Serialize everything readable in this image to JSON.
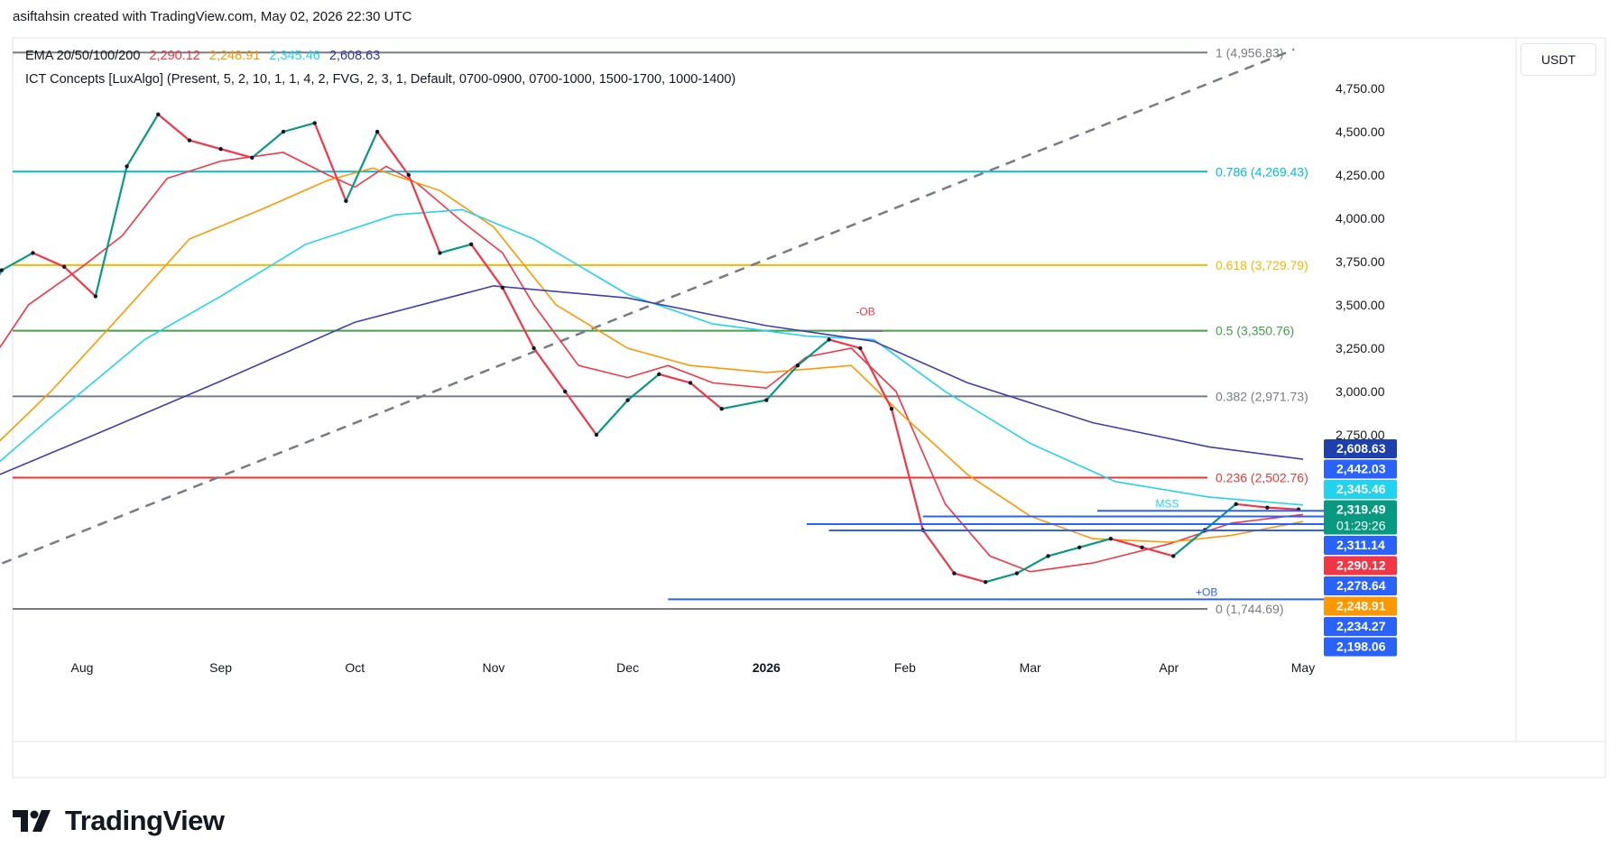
{
  "header": {
    "text": "asiftahsin created with TradingView.com, May 02, 2026 22:30 UTC"
  },
  "legend": {
    "ema_label": "EMA 20/50/100/200",
    "ema_values": [
      {
        "value": "2,290.12",
        "color": "#f23645"
      },
      {
        "value": "2,248.91",
        "color": "#ff9800"
      },
      {
        "value": "2,345.46",
        "color": "#22d3ee"
      },
      {
        "value": "2,608.63",
        "color": "#2e3a9e"
      }
    ],
    "ict": "ICT Concepts [LuxAlgo] (Present, 5, 2, 10, 1, 1, 4, 2, FVG, 2, 3, 1, Default, 0700-0900, 0700-1000, 1500-1700, 1000-1400)"
  },
  "currency": "USDT",
  "brand": "TradingView",
  "chart_data": {
    "type": "candlestick",
    "symbol_quote": "USDT",
    "y_axis_ticks": [
      4750,
      4500,
      4250,
      4000,
      3750,
      3500,
      3250,
      3000,
      2750
    ],
    "y_axis_tick_labels": [
      "4,750.00",
      "4,500.00",
      "4,250.00",
      "4,000.00",
      "3,750.00",
      "3,500.00",
      "3,250.00",
      "3,000.00",
      "2,750.00"
    ],
    "ylim": [
      1600,
      5050
    ],
    "x_axis_labels": [
      "Aug",
      "Sep",
      "Oct",
      "Nov",
      "Dec",
      "2026",
      "Feb",
      "Mar",
      "Apr",
      "May"
    ],
    "x_axis_dates": [
      "2025-08-01",
      "2025-09-01",
      "2025-10-01",
      "2025-11-01",
      "2025-12-01",
      "2026-01-01",
      "2026-02-01",
      "2026-03-01",
      "2026-04-01",
      "2026-05-01"
    ],
    "fib_levels": [
      {
        "ratio": "1",
        "value": 4956.83,
        "label": "1 (4,956.83)",
        "color": "#787b86"
      },
      {
        "ratio": "0.786",
        "value": 4269.43,
        "label": "0.786 (4,269.43)",
        "color": "#00bcd4"
      },
      {
        "ratio": "0.618",
        "value": 3729.79,
        "label": "0.618 (3,729.79)",
        "color": "#f5b700"
      },
      {
        "ratio": "0.5",
        "value": 3350.76,
        "label": "0.5 (3,350.76)",
        "color": "#43a047"
      },
      {
        "ratio": "0.382",
        "value": 2971.73,
        "label": "0.382 (2,971.73)",
        "color": "#787b86"
      },
      {
        "ratio": "0.236",
        "value": 2502.76,
        "label": "0.236 (2,502.76)",
        "color": "#e53935"
      },
      {
        "ratio": "0",
        "value": 1744.69,
        "label": "0 (1,744.69)",
        "color": "#787b86"
      }
    ],
    "trend_line": {
      "from": [
        "2025-07-07",
        1935
      ],
      "to": [
        "2026-04-29",
        4975
      ],
      "style": "dashed",
      "color": "#787b86"
    },
    "price_tags": [
      {
        "value": 2608.63,
        "label": "2,608.63",
        "bg": "#1e40af"
      },
      {
        "value": 2442.03,
        "label": "2,442.03",
        "bg": "#2962ff"
      },
      {
        "value": 2345.46,
        "label": "2,345.46",
        "bg": "#22d3ee"
      },
      {
        "value": 2319.49,
        "label": "2,319.49",
        "bg": "#089981",
        "sub": "01:29:26"
      },
      {
        "value": 2311.14,
        "label": "2,311.14",
        "bg": "#2962ff"
      },
      {
        "value": 2290.12,
        "label": "2,290.12",
        "bg": "#f23645"
      },
      {
        "value": 2278.64,
        "label": "2,278.64",
        "bg": "#2962ff"
      },
      {
        "value": 2248.91,
        "label": "2,248.91",
        "bg": "#ff9800"
      },
      {
        "value": 2234.27,
        "label": "2,234.27",
        "bg": "#2962ff"
      },
      {
        "value": 2198.06,
        "label": "2,198.06",
        "bg": "#2962ff"
      }
    ],
    "annotations": [
      {
        "text": "-OB",
        "date": "2026-01-21",
        "value": 3440,
        "color": "#f23645"
      },
      {
        "text": "+OB",
        "date": "2026-04-07",
        "value": 1820,
        "color": "#2962ff"
      },
      {
        "text": "MSS",
        "date": "2026-03-29",
        "value": 2330,
        "color": "#22d3ee"
      }
    ],
    "ob_lines": [
      {
        "value": 2311.14,
        "from": "2026-03-16"
      },
      {
        "value": 2278.64,
        "from": "2026-02-05"
      },
      {
        "value": 2234.27,
        "from": "2026-01-10"
      },
      {
        "value": 2198.06,
        "from": "2026-01-15"
      },
      {
        "value": 1800,
        "from": "2025-12-10"
      }
    ],
    "ob_red_segment": {
      "value": 3350,
      "from": "2026-01-18",
      "to": "2026-01-27"
    },
    "ema_series": [
      {
        "name": "EMA 20",
        "color": "#f23645",
        "points": [
          [
            "2025-07-07",
            3000
          ],
          [
            "2025-07-20",
            3500
          ],
          [
            "2025-08-01",
            3720
          ],
          [
            "2025-08-10",
            3900
          ],
          [
            "2025-08-20",
            4230
          ],
          [
            "2025-09-01",
            4330
          ],
          [
            "2025-09-15",
            4380
          ],
          [
            "2025-09-25",
            4250
          ],
          [
            "2025-10-01",
            4180
          ],
          [
            "2025-10-08",
            4300
          ],
          [
            "2025-10-15",
            4200
          ],
          [
            "2025-10-25",
            3980
          ],
          [
            "2025-11-03",
            3800
          ],
          [
            "2025-11-10",
            3500
          ],
          [
            "2025-11-20",
            3150
          ],
          [
            "2025-12-01",
            3080
          ],
          [
            "2025-12-10",
            3150
          ],
          [
            "2025-12-20",
            3050
          ],
          [
            "2026-01-01",
            3020
          ],
          [
            "2026-01-10",
            3200
          ],
          [
            "2026-01-20",
            3250
          ],
          [
            "2026-01-30",
            3000
          ],
          [
            "2026-02-10",
            2350
          ],
          [
            "2026-02-20",
            2050
          ],
          [
            "2026-03-01",
            1960
          ],
          [
            "2026-03-15",
            2010
          ],
          [
            "2026-04-01",
            2120
          ],
          [
            "2026-04-15",
            2240
          ],
          [
            "2026-05-01",
            2290
          ]
        ]
      },
      {
        "name": "EMA 50",
        "color": "#ff9800",
        "points": [
          [
            "2025-07-07",
            2550
          ],
          [
            "2025-07-25",
            3000
          ],
          [
            "2025-08-10",
            3450
          ],
          [
            "2025-08-25",
            3880
          ],
          [
            "2025-09-10",
            4050
          ],
          [
            "2025-09-25",
            4220
          ],
          [
            "2025-10-05",
            4290
          ],
          [
            "2025-10-20",
            4160
          ],
          [
            "2025-11-01",
            3950
          ],
          [
            "2025-11-15",
            3500
          ],
          [
            "2025-12-01",
            3250
          ],
          [
            "2025-12-15",
            3150
          ],
          [
            "2026-01-01",
            3110
          ],
          [
            "2026-01-20",
            3150
          ],
          [
            "2026-02-01",
            2850
          ],
          [
            "2026-02-15",
            2520
          ],
          [
            "2026-03-01",
            2280
          ],
          [
            "2026-03-15",
            2150
          ],
          [
            "2026-04-01",
            2130
          ],
          [
            "2026-04-15",
            2170
          ],
          [
            "2026-05-01",
            2249
          ]
        ]
      },
      {
        "name": "EMA 100",
        "color": "#22d3ee",
        "points": [
          [
            "2025-07-07",
            2450
          ],
          [
            "2025-07-25",
            2850
          ],
          [
            "2025-08-15",
            3300
          ],
          [
            "2025-09-01",
            3550
          ],
          [
            "2025-09-20",
            3850
          ],
          [
            "2025-10-10",
            4020
          ],
          [
            "2025-10-25",
            4050
          ],
          [
            "2025-11-10",
            3880
          ],
          [
            "2025-12-01",
            3560
          ],
          [
            "2025-12-20",
            3390
          ],
          [
            "2026-01-10",
            3320
          ],
          [
            "2026-01-25",
            3300
          ],
          [
            "2026-02-10",
            3000
          ],
          [
            "2026-03-01",
            2700
          ],
          [
            "2026-03-20",
            2480
          ],
          [
            "2026-04-10",
            2390
          ],
          [
            "2026-05-01",
            2345
          ]
        ]
      },
      {
        "name": "EMA 200",
        "color": "#3f3fb0",
        "points": [
          [
            "2025-07-07",
            2450
          ],
          [
            "2025-08-01",
            2720
          ],
          [
            "2025-09-01",
            3060
          ],
          [
            "2025-10-01",
            3400
          ],
          [
            "2025-11-01",
            3610
          ],
          [
            "2025-12-01",
            3540
          ],
          [
            "2026-01-01",
            3380
          ],
          [
            "2026-01-25",
            3290
          ],
          [
            "2026-02-15",
            3050
          ],
          [
            "2026-03-15",
            2820
          ],
          [
            "2026-04-10",
            2680
          ],
          [
            "2026-05-01",
            2609
          ]
        ]
      }
    ],
    "close_series": [
      [
        "2025-07-07",
        3350
      ],
      [
        "2025-07-14",
        3700
      ],
      [
        "2025-07-21",
        3800
      ],
      [
        "2025-07-28",
        3720
      ],
      [
        "2025-08-04",
        3550
      ],
      [
        "2025-08-11",
        4300
      ],
      [
        "2025-08-18",
        4600
      ],
      [
        "2025-08-25",
        4450
      ],
      [
        "2025-09-01",
        4400
      ],
      [
        "2025-09-08",
        4350
      ],
      [
        "2025-09-15",
        4500
      ],
      [
        "2025-09-22",
        4550
      ],
      [
        "2025-09-29",
        4100
      ],
      [
        "2025-10-06",
        4500
      ],
      [
        "2025-10-13",
        4250
      ],
      [
        "2025-10-20",
        3800
      ],
      [
        "2025-10-27",
        3850
      ],
      [
        "2025-11-03",
        3600
      ],
      [
        "2025-11-10",
        3250
      ],
      [
        "2025-11-17",
        3000
      ],
      [
        "2025-11-24",
        2750
      ],
      [
        "2025-12-01",
        2950
      ],
      [
        "2025-12-08",
        3100
      ],
      [
        "2025-12-15",
        3050
      ],
      [
        "2025-12-22",
        2900
      ],
      [
        "2026-01-01",
        2950
      ],
      [
        "2026-01-08",
        3150
      ],
      [
        "2026-01-15",
        3300
      ],
      [
        "2026-01-22",
        3250
      ],
      [
        "2026-01-29",
        2900
      ],
      [
        "2026-02-05",
        2200
      ],
      [
        "2026-02-12",
        1950
      ],
      [
        "2026-02-19",
        1900
      ],
      [
        "2026-02-26",
        1950
      ],
      [
        "2026-03-05",
        2050
      ],
      [
        "2026-03-12",
        2100
      ],
      [
        "2026-03-19",
        2150
      ],
      [
        "2026-03-26",
        2100
      ],
      [
        "2026-04-02",
        2050
      ],
      [
        "2026-04-09",
        2200
      ],
      [
        "2026-04-16",
        2350
      ],
      [
        "2026-04-23",
        2330
      ],
      [
        "2026-04-30",
        2319
      ]
    ]
  }
}
